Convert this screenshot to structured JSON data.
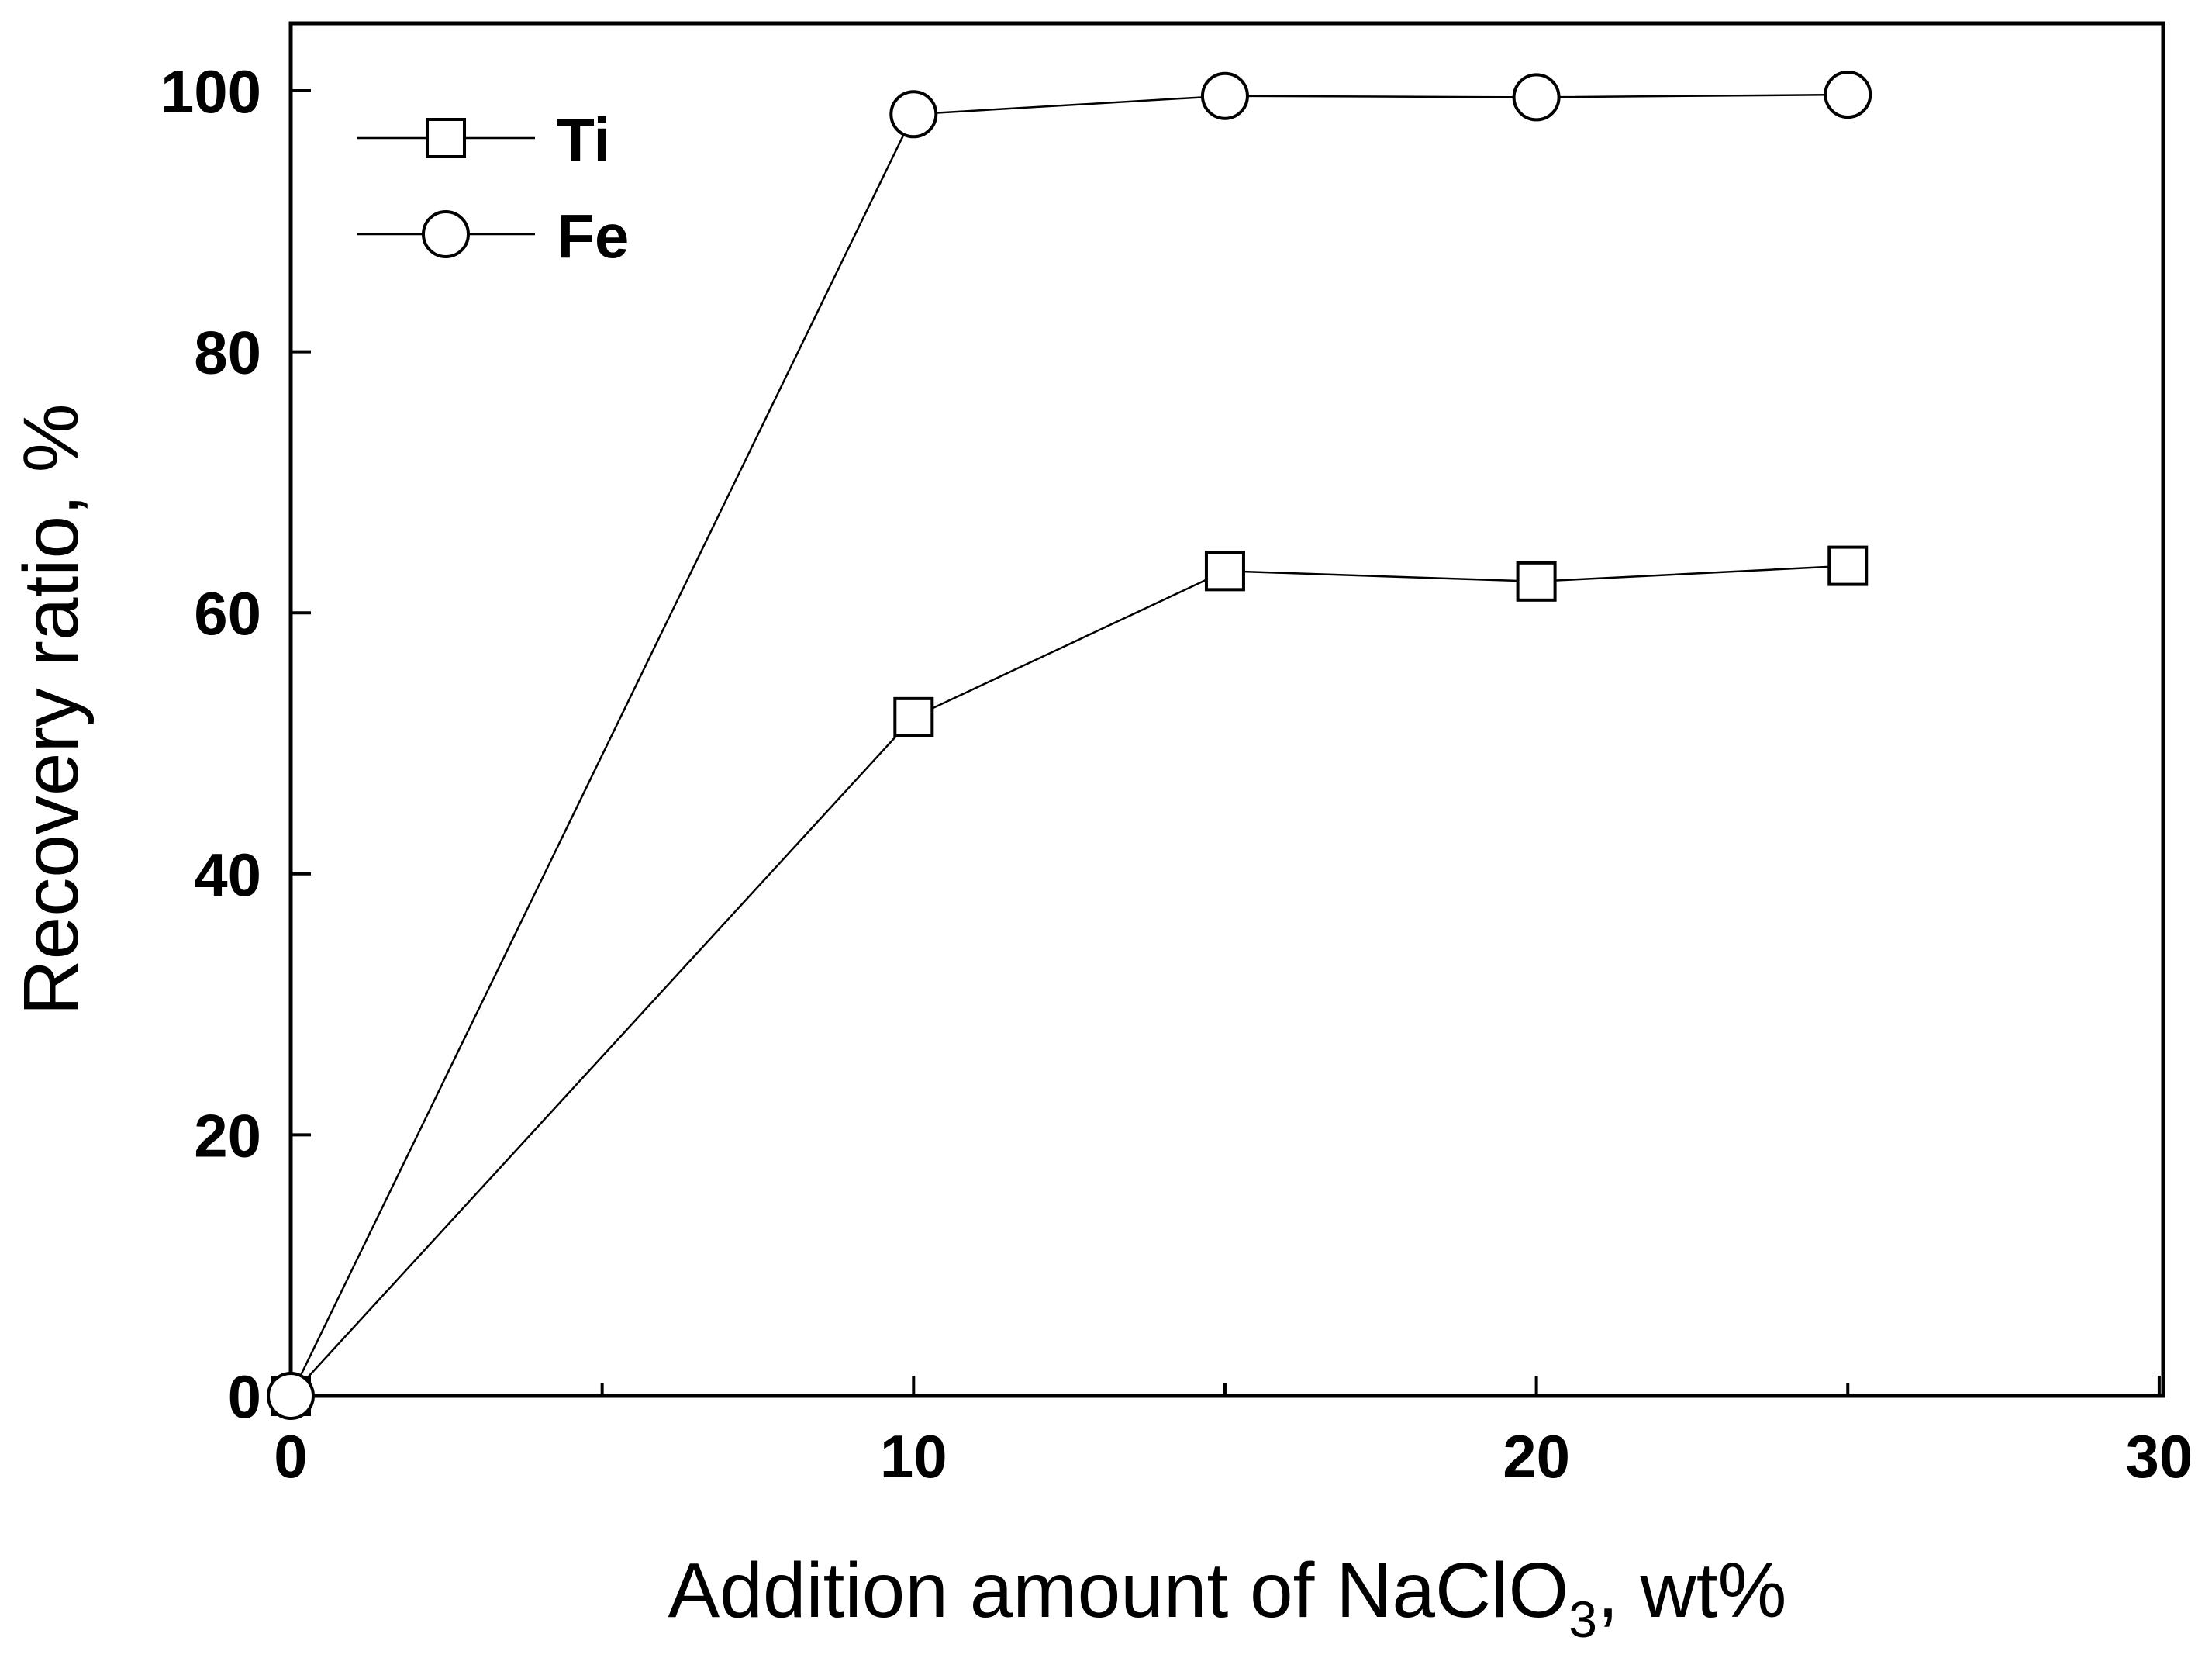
{
  "chart_data": {
    "type": "line",
    "xlabel": "Addition amount of  NaClO3, wt%",
    "xlabel_parts": {
      "prefix": "Addition amount of  NaClO",
      "subscript": "3",
      "suffix": ", wt%"
    },
    "ylabel": "Recovery ratio, %",
    "xlim": [
      0,
      30
    ],
    "ylim": [
      0,
      105
    ],
    "x_ticks": [
      0,
      10,
      20,
      30
    ],
    "x_minor_ticks": [
      5,
      15,
      25
    ],
    "y_ticks": [
      0,
      20,
      40,
      60,
      80,
      100
    ],
    "legend_position": "top-left",
    "series": [
      {
        "name": "Ti",
        "marker": "square",
        "x": [
          0,
          10,
          15,
          20,
          25
        ],
        "values": [
          0,
          52,
          63.2,
          62.4,
          63.6
        ]
      },
      {
        "name": "Fe",
        "marker": "circle",
        "x": [
          0,
          10,
          15,
          20,
          25
        ],
        "values": [
          0,
          98.2,
          99.6,
          99.5,
          99.7
        ]
      }
    ],
    "colors": {
      "line": "#000000",
      "marker_fill": "#ffffff",
      "background": "#ffffff"
    }
  }
}
